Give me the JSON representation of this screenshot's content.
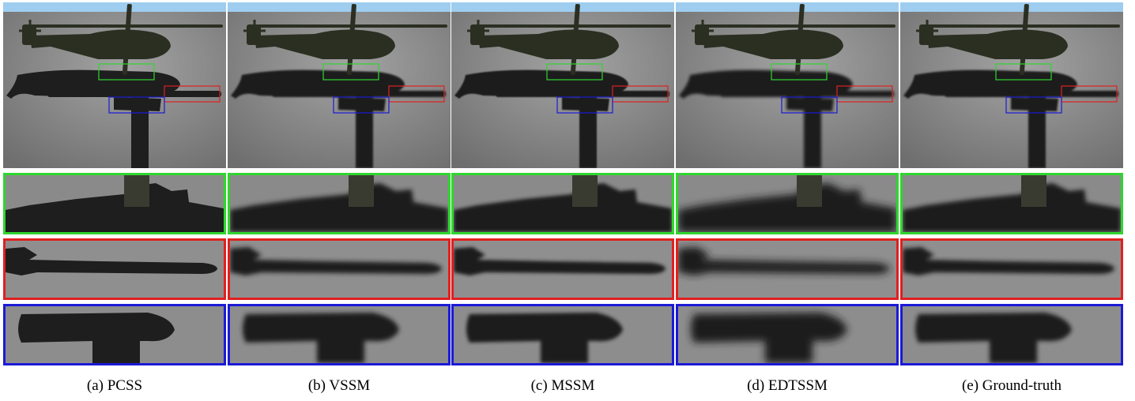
{
  "panels": [
    {
      "id": "a",
      "caption": "(a) PCSS"
    },
    {
      "id": "b",
      "caption": "(b) VSSM"
    },
    {
      "id": "c",
      "caption": "(c) MSSM"
    },
    {
      "id": "d",
      "caption": "(d) EDTSSM"
    },
    {
      "id": "e",
      "caption": "(e) Ground-truth"
    }
  ],
  "colors": {
    "sky": "#9ecdf0",
    "floor": "#8e8e8e",
    "shadow": "#1e1e1e",
    "helicopter": "#2b2f22",
    "green_box": "#2fd62f",
    "red_box": "#e02020",
    "blue_box": "#1a1ad6"
  }
}
